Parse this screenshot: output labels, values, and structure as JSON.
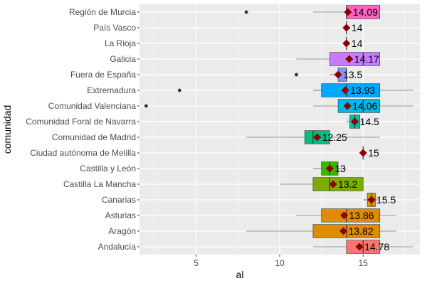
{
  "chart_data": {
    "type": "boxplot",
    "orientation": "horizontal",
    "xlabel": "al",
    "ylabel": "comunidad",
    "xlim": [
      1.6,
      18.4
    ],
    "x_ticks": [
      5,
      10,
      15
    ],
    "grid": true,
    "legend": "none",
    "background_color": "#ebebeb",
    "grid_color": "#ffffff",
    "mean_marker_color": "#8b0000",
    "categories": [
      "Región de Murcia",
      "País Vasco",
      "La Rioja",
      "Galicia",
      "Fuera de España",
      "Extremadura",
      "Comunidad Valenciana",
      "Comunidad Foral de Navarra",
      "Comunidad de Madrid",
      "Ciudad autónoma de Melilla",
      "Castilla y León",
      "Castilla La Mancha",
      "Canarias",
      "Asturias",
      "Aragón",
      "Andalucía"
    ],
    "boxes": [
      {
        "category": "Región de Murcia",
        "color": "#ff61c3",
        "whisker_low": 12,
        "q1": 14,
        "median": 14,
        "q3": 16,
        "whisker_high": 16,
        "outliers": [
          8
        ],
        "mean": 14.09,
        "mean_label": "14.09"
      },
      {
        "category": "País Vasco",
        "color": "#ff64b0",
        "whisker_low": 14,
        "q1": 14,
        "median": 14,
        "q3": 14,
        "whisker_high": 14,
        "outliers": [],
        "mean": 14,
        "mean_label": "14"
      },
      {
        "category": "La Rioja",
        "color": "#f564e3",
        "whisker_low": 14,
        "q1": 14,
        "median": 14,
        "q3": 14,
        "whisker_high": 14,
        "outliers": [],
        "mean": 14,
        "mean_label": "14"
      },
      {
        "category": "Galicia",
        "color": "#c77cff",
        "whisker_low": 11,
        "q1": 13,
        "median": 15,
        "q3": 16,
        "whisker_high": 16,
        "outliers": [],
        "mean": 14.17,
        "mean_label": "14.17"
      },
      {
        "category": "Fuera de España",
        "color": "#8494ff",
        "whisker_low": 13,
        "q1": 13.5,
        "median": 14,
        "q3": 14,
        "whisker_high": 14,
        "outliers": [
          11
        ],
        "mean": 13.5,
        "mean_label": "13.5"
      },
      {
        "category": "Extremadura",
        "color": "#00a9ff",
        "whisker_low": 12,
        "q1": 12.5,
        "median": 14,
        "q3": 16,
        "whisker_high": 18,
        "outliers": [
          4
        ],
        "mean": 13.93,
        "mean_label": "13.93"
      },
      {
        "category": "Comunidad Valenciana",
        "color": "#00b8e7",
        "whisker_low": 12,
        "q1": 13.5,
        "median": 15,
        "q3": 16,
        "whisker_high": 18,
        "outliers": [
          2
        ],
        "mean": 14.06,
        "mean_label": "14.06"
      },
      {
        "category": "Comunidad Foral de Navarra",
        "color": "#00c1a3",
        "whisker_low": 14,
        "q1": 14.2,
        "median": 14.5,
        "q3": 14.8,
        "whisker_high": 15,
        "outliers": [],
        "mean": 14.5,
        "mean_label": "14.5"
      },
      {
        "category": "Comunidad de Madrid",
        "color": "#00bf7d",
        "whisker_low": 8,
        "q1": 11.5,
        "median": 12,
        "q3": 13,
        "whisker_high": 16,
        "outliers": [],
        "mean": 12.25,
        "mean_label": "12.25"
      },
      {
        "category": "Ciudad autónoma de Melilla",
        "color": "#00ba38",
        "whisker_low": 15,
        "q1": 15,
        "median": 15,
        "q3": 15,
        "whisker_high": 15,
        "outliers": [],
        "mean": 15,
        "mean_label": "15"
      },
      {
        "category": "Castilla y León",
        "color": "#39b600",
        "whisker_low": 12,
        "q1": 12.5,
        "median": 13,
        "q3": 13.5,
        "whisker_high": 14,
        "outliers": [],
        "mean": 13,
        "mean_label": "13"
      },
      {
        "category": "Castilla La Mancha",
        "color": "#7cae00",
        "whisker_low": 10,
        "q1": 12,
        "median": 13,
        "q3": 15,
        "whisker_high": 15,
        "outliers": [],
        "mean": 13.2,
        "mean_label": "13.2"
      },
      {
        "category": "Canarias",
        "color": "#cf9a00",
        "whisker_low": 15,
        "q1": 15.25,
        "median": 15.5,
        "q3": 15.75,
        "whisker_high": 16,
        "outliers": [],
        "mean": 15.5,
        "mean_label": "15.5"
      },
      {
        "category": "Asturias",
        "color": "#de8c00",
        "whisker_low": 11,
        "q1": 12.5,
        "median": 14,
        "q3": 16,
        "whisker_high": 17,
        "outliers": [],
        "mean": 13.86,
        "mean_label": "13.86"
      },
      {
        "category": "Aragón",
        "color": "#de8c00",
        "whisker_low": 8,
        "q1": 12,
        "median": 14,
        "q3": 16,
        "whisker_high": 17,
        "outliers": [],
        "mean": 13.82,
        "mean_label": "13.82"
      },
      {
        "category": "Andalucía",
        "color": "#f8766d",
        "whisker_low": 12,
        "q1": 14,
        "median": 15,
        "q3": 16,
        "whisker_high": 18,
        "outliers": [],
        "mean": 14.78,
        "mean_label": "14.78"
      }
    ]
  }
}
